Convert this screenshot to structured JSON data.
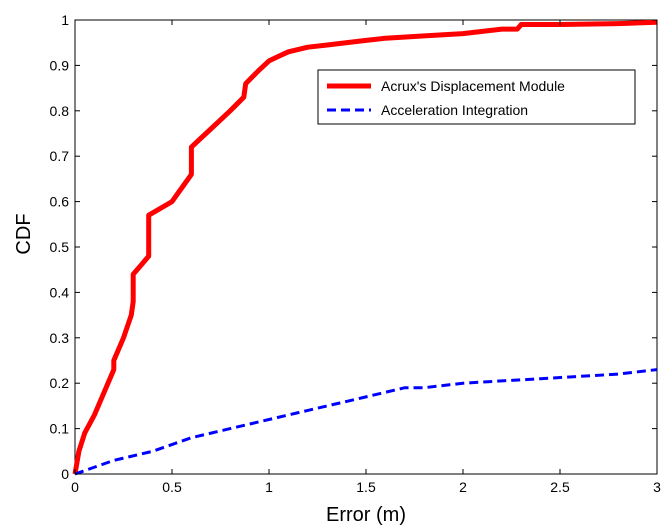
{
  "chart_data": {
    "type": "line",
    "title": "",
    "xlabel": "Error (m)",
    "ylabel": "CDF",
    "xlim": [
      0,
      3
    ],
    "ylim": [
      0,
      1
    ],
    "x_ticks": [
      "0",
      "0.5",
      "1",
      "1.5",
      "2",
      "2.5",
      "3"
    ],
    "y_ticks": [
      "0",
      "0.1",
      "0.2",
      "0.3",
      "0.4",
      "0.5",
      "0.6",
      "0.7",
      "0.8",
      "0.9",
      "1"
    ],
    "grid": false,
    "legend_position": "top-right",
    "series": [
      {
        "name": "Acrux's Displacement Module",
        "color": "#ff0000",
        "style": "solid",
        "points": [
          [
            0,
            0
          ],
          [
            0.02,
            0.05
          ],
          [
            0.05,
            0.09
          ],
          [
            0.1,
            0.13
          ],
          [
            0.15,
            0.18
          ],
          [
            0.2,
            0.23
          ],
          [
            0.2,
            0.25
          ],
          [
            0.25,
            0.3
          ],
          [
            0.29,
            0.35
          ],
          [
            0.3,
            0.38
          ],
          [
            0.3,
            0.44
          ],
          [
            0.34,
            0.46
          ],
          [
            0.38,
            0.48
          ],
          [
            0.38,
            0.57
          ],
          [
            0.42,
            0.58
          ],
          [
            0.5,
            0.6
          ],
          [
            0.55,
            0.63
          ],
          [
            0.6,
            0.66
          ],
          [
            0.6,
            0.72
          ],
          [
            0.65,
            0.74
          ],
          [
            0.7,
            0.76
          ],
          [
            0.8,
            0.8
          ],
          [
            0.87,
            0.83
          ],
          [
            0.88,
            0.86
          ],
          [
            0.95,
            0.89
          ],
          [
            1.0,
            0.91
          ],
          [
            1.05,
            0.92
          ],
          [
            1.1,
            0.93
          ],
          [
            1.2,
            0.94
          ],
          [
            1.3,
            0.945
          ],
          [
            1.5,
            0.955
          ],
          [
            1.6,
            0.96
          ],
          [
            1.8,
            0.965
          ],
          [
            2.0,
            0.97
          ],
          [
            2.2,
            0.98
          ],
          [
            2.28,
            0.98
          ],
          [
            2.3,
            0.99
          ],
          [
            2.5,
            0.99
          ],
          [
            2.8,
            0.992
          ],
          [
            3.0,
            0.995
          ]
        ]
      },
      {
        "name": "Acceleration Integration",
        "color": "#0000ff",
        "style": "dashed",
        "points": [
          [
            0,
            0
          ],
          [
            0.2,
            0.03
          ],
          [
            0.4,
            0.05
          ],
          [
            0.6,
            0.08
          ],
          [
            0.8,
            0.1
          ],
          [
            1.0,
            0.12
          ],
          [
            1.2,
            0.14
          ],
          [
            1.4,
            0.16
          ],
          [
            1.6,
            0.18
          ],
          [
            1.7,
            0.19
          ],
          [
            1.8,
            0.19
          ],
          [
            2.0,
            0.2
          ],
          [
            2.2,
            0.205
          ],
          [
            2.4,
            0.21
          ],
          [
            2.6,
            0.215
          ],
          [
            2.8,
            0.22
          ],
          [
            3.0,
            0.23
          ]
        ]
      }
    ]
  }
}
